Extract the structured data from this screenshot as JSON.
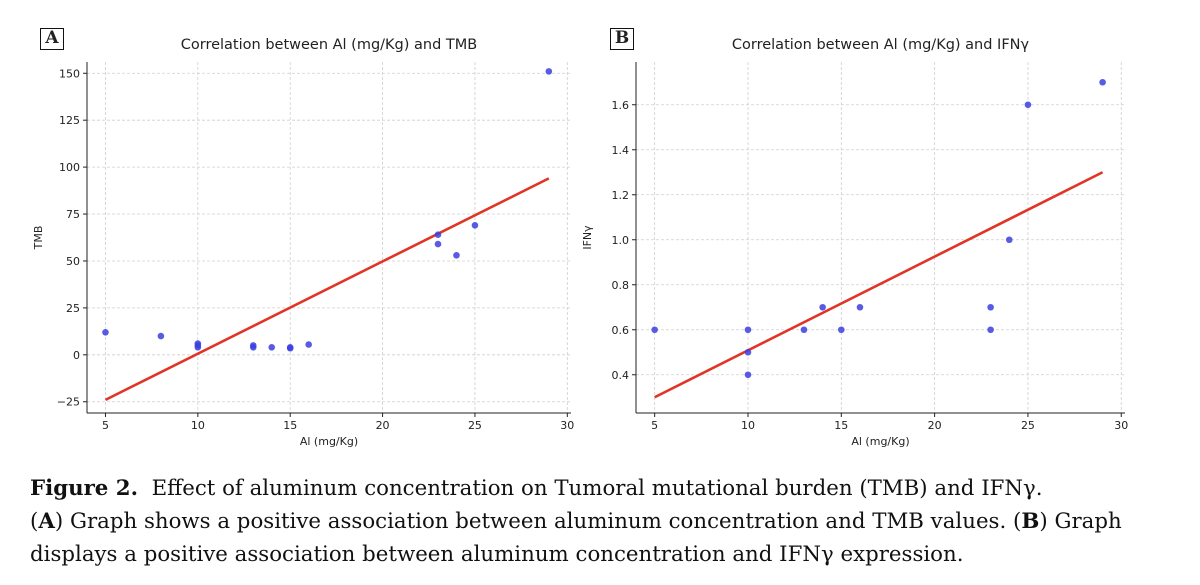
{
  "chart_data": [
    {
      "panel_letter": "A",
      "type": "scatter",
      "title": "Correlation between Al (mg/Kg) and TMB",
      "xlabel": "Al (mg/Kg)",
      "ylabel": "TMB",
      "xlim": [
        4,
        30.2
      ],
      "ylim": [
        -31,
        156
      ],
      "xticks": [
        5,
        10,
        15,
        20,
        25,
        30
      ],
      "yticks": [
        -25,
        0,
        25,
        50,
        75,
        100,
        125,
        150
      ],
      "ytick_labels": [
        "−25",
        "0",
        "25",
        "50",
        "75",
        "100",
        "125",
        "150"
      ],
      "grid": true,
      "point_color": "#3b3fe0",
      "line_color": "#e03526",
      "points": [
        {
          "x": 5,
          "y": 12
        },
        {
          "x": 8,
          "y": 10
        },
        {
          "x": 10,
          "y": 6
        },
        {
          "x": 10,
          "y": 5
        },
        {
          "x": 10,
          "y": 4
        },
        {
          "x": 13,
          "y": 5
        },
        {
          "x": 13,
          "y": 4
        },
        {
          "x": 14,
          "y": 4
        },
        {
          "x": 15,
          "y": 4
        },
        {
          "x": 15,
          "y": 3.5
        },
        {
          "x": 16,
          "y": 5.5
        },
        {
          "x": 23,
          "y": 64
        },
        {
          "x": 23,
          "y": 59
        },
        {
          "x": 24,
          "y": 53
        },
        {
          "x": 25,
          "y": 69
        },
        {
          "x": 29,
          "y": 151
        }
      ],
      "fit_line": {
        "x": [
          5,
          29
        ],
        "y": [
          -24,
          94
        ]
      }
    },
    {
      "panel_letter": "B",
      "type": "scatter",
      "title": "Correlation between Al (mg/Kg) and IFNγ",
      "xlabel": "Al (mg/Kg)",
      "ylabel": "IFNγ",
      "xlim": [
        4,
        30.2
      ],
      "ylim": [
        0.23,
        1.79
      ],
      "xticks": [
        5,
        10,
        15,
        20,
        25,
        30
      ],
      "yticks": [
        0.4,
        0.6,
        0.8,
        1.0,
        1.2,
        1.4,
        1.6
      ],
      "ytick_labels": [
        "0.4",
        "0.6",
        "0.8",
        "1.0",
        "1.2",
        "1.4",
        "1.6"
      ],
      "grid": true,
      "point_color": "#3b3fe0",
      "line_color": "#e03526",
      "points": [
        {
          "x": 5,
          "y": 0.6
        },
        {
          "x": 10,
          "y": 0.6
        },
        {
          "x": 10,
          "y": 0.5
        },
        {
          "x": 10,
          "y": 0.4
        },
        {
          "x": 13,
          "y": 0.6
        },
        {
          "x": 14,
          "y": 0.7
        },
        {
          "x": 15,
          "y": 0.6
        },
        {
          "x": 16,
          "y": 0.7
        },
        {
          "x": 23,
          "y": 0.7
        },
        {
          "x": 23,
          "y": 0.6
        },
        {
          "x": 24,
          "y": 1.0
        },
        {
          "x": 25,
          "y": 1.6
        },
        {
          "x": 29,
          "y": 1.7
        }
      ],
      "fit_line": {
        "x": [
          5,
          29
        ],
        "y": [
          0.3,
          1.3
        ]
      }
    }
  ],
  "caption": {
    "figure_label": "Figure 2.",
    "lines": [
      "Effect of aluminum concentration on Tumoral mutational burden (TMB) and IFNγ.",
      "Graph shows a positive association between aluminum concentration and TMB values.",
      "Graph displays a positive association between aluminum concentration and IFNγ expression."
    ],
    "ref_a": "A",
    "ref_b": "B"
  }
}
